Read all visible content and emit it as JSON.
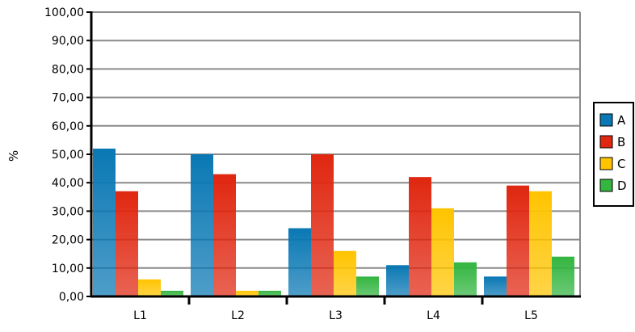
{
  "chart_data": {
    "type": "bar",
    "title": "",
    "xlabel": "",
    "ylabel": "%",
    "ylim": [
      0,
      100
    ],
    "yticks": [
      "0,00",
      "10,00",
      "20,00",
      "30,00",
      "40,00",
      "50,00",
      "60,00",
      "70,00",
      "80,00",
      "90,00",
      "100,00"
    ],
    "categories": [
      "L1",
      "L2",
      "L3",
      "L4",
      "L5"
    ],
    "grid": true,
    "legend_position": "right",
    "series": [
      {
        "name": "A",
        "color": "#0a78b4",
        "values": [
          52,
          50,
          24,
          11,
          7
        ]
      },
      {
        "name": "B",
        "color": "#e02710",
        "values": [
          37,
          43,
          50,
          42,
          39
        ]
      },
      {
        "name": "C",
        "color": "#ffc400",
        "values": [
          6,
          2,
          16,
          31,
          37
        ]
      },
      {
        "name": "D",
        "color": "#33b540",
        "values": [
          2,
          2,
          7,
          12,
          14
        ]
      }
    ]
  }
}
